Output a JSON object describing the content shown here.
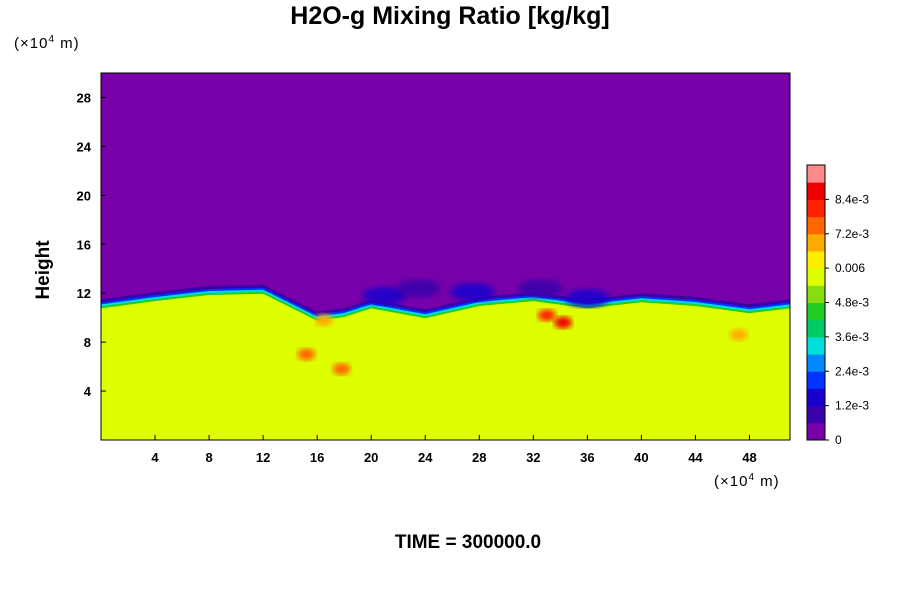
{
  "title": "H2O-g Mixing Ratio [kg/kg]",
  "y_unit": {
    "base": "(×10",
    "exp": "4",
    "rest": " m)"
  },
  "x_unit": {
    "base": "(×10",
    "exp": "4",
    "rest": " m)"
  },
  "time_label": "TIME = 300000.0",
  "chart_data": {
    "type": "heatmap",
    "title": "H2O-g Mixing Ratio [kg/kg]",
    "xlabel": "",
    "ylabel": "Height",
    "x_unit": "×10^4 m",
    "y_unit": "×10^4 m",
    "xlim": [
      0,
      51
    ],
    "ylim": [
      0,
      30
    ],
    "x_ticks": [
      4,
      8,
      12,
      16,
      20,
      24,
      28,
      32,
      36,
      40,
      44,
      48
    ],
    "y_ticks": [
      4,
      8,
      12,
      16,
      20,
      24,
      28
    ],
    "colorbar": {
      "range": [
        0,
        0.0096
      ],
      "labels": [
        {
          "value": 0,
          "text": "0"
        },
        {
          "value": 0.0012,
          "text": "1.2e-3"
        },
        {
          "value": 0.0024,
          "text": "2.4e-3"
        },
        {
          "value": 0.0036,
          "text": "3.6e-3"
        },
        {
          "value": 0.0048,
          "text": "4.8e-3"
        },
        {
          "value": 0.006,
          "text": "0.006"
        },
        {
          "value": 0.0072,
          "text": "7.2e-3"
        },
        {
          "value": 0.0084,
          "text": "8.4e-3"
        }
      ],
      "colors": [
        "#7700aa",
        "#3a00aa",
        "#1a00cc",
        "#0033ff",
        "#0088ff",
        "#00dddd",
        "#00cc66",
        "#22cc22",
        "#88dd11",
        "#ddff00",
        "#ffee00",
        "#ffaa00",
        "#ff6600",
        "#ff2200",
        "#ee0000",
        "#ff8888"
      ]
    },
    "field": {
      "upper_value": 0,
      "lower_value": 0.0058,
      "interface_height": [
        [
          0,
          11.0
        ],
        [
          4,
          11.6
        ],
        [
          8,
          12.1
        ],
        [
          12,
          12.2
        ],
        [
          16,
          10.0
        ],
        [
          18,
          10.3
        ],
        [
          20,
          11.0
        ],
        [
          24,
          10.2
        ],
        [
          28,
          11.2
        ],
        [
          32,
          11.6
        ],
        [
          36,
          11.0
        ],
        [
          40,
          11.5
        ],
        [
          44,
          11.2
        ],
        [
          48,
          10.6
        ],
        [
          51,
          11.0
        ]
      ],
      "moist_patches": [
        {
          "x": 15.2,
          "y": 7.0,
          "value": 0.0072
        },
        {
          "x": 17.8,
          "y": 5.8,
          "value": 0.0072
        },
        {
          "x": 34.2,
          "y": 9.6,
          "value": 0.0084
        },
        {
          "x": 33.0,
          "y": 10.2,
          "value": 0.0078
        },
        {
          "x": 47.2,
          "y": 8.6,
          "value": 0.0068
        },
        {
          "x": 16.5,
          "y": 9.8,
          "value": 0.0068
        }
      ],
      "dry_pockets": [
        {
          "x": 21.0,
          "y": 11.8,
          "value": 0.0012
        },
        {
          "x": 23.5,
          "y": 12.4,
          "value": 0.0008
        },
        {
          "x": 27.5,
          "y": 12.1,
          "value": 0.0012
        },
        {
          "x": 32.5,
          "y": 12.4,
          "value": 0.001
        },
        {
          "x": 36.0,
          "y": 11.6,
          "value": 0.0012
        }
      ]
    }
  }
}
